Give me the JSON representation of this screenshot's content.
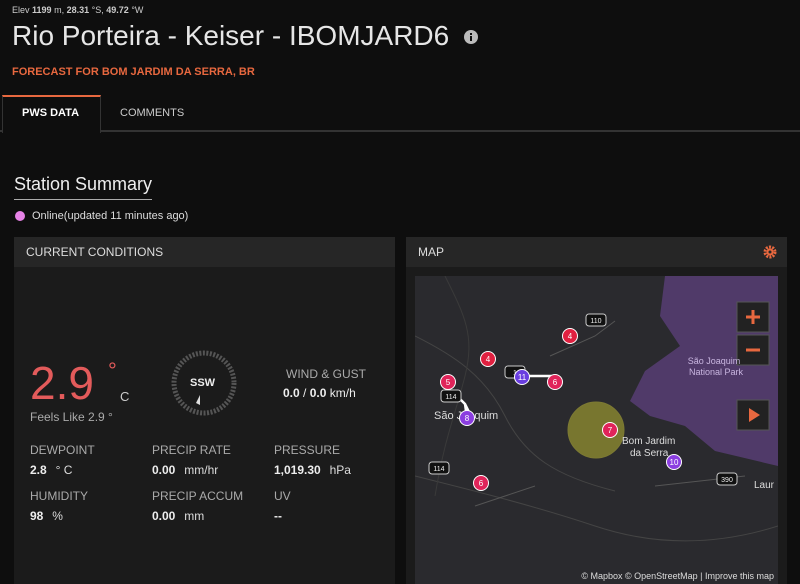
{
  "header": {
    "elev_label": "Elev",
    "elev": "1199",
    "elev_unit": "m,",
    "lat": "28.31",
    "lat_unit": "°S,",
    "lon": "49.72",
    "lon_unit": "°W",
    "title": "Rio Porteira - Keiser - IBOMJARD6",
    "forecast": "FORECAST FOR BOM JARDIM DA SERRA, BR"
  },
  "tabs": [
    "PWS DATA",
    "COMMENTS"
  ],
  "summary": {
    "title": "Station Summary",
    "status": "Online(updated 11 minutes ago)"
  },
  "current": {
    "title": "CURRENT CONDITIONS",
    "temp": "2.9",
    "temp_unit": "°",
    "temp_scale": "C",
    "feels": "Feels Like 2.9 °",
    "wind_dir": "SSW",
    "wind_label": "WIND & GUST",
    "wind": "0.0",
    "wind_sep": "/",
    "gust": "0.0",
    "wind_unit": "km/h",
    "metrics": [
      {
        "label": "DEWPOINT",
        "value": "2.8",
        "unit": "° C"
      },
      {
        "label": "PRECIP RATE",
        "value": "0.00",
        "unit": "mm/hr"
      },
      {
        "label": "PRESSURE",
        "value": "1,019.30",
        "unit": "hPa"
      },
      {
        "label": "HUMIDITY",
        "value": "98",
        "unit": "%"
      },
      {
        "label": "PRECIP ACCUM",
        "value": "0.00",
        "unit": "mm"
      },
      {
        "label": "UV",
        "value": "--",
        "unit": ""
      }
    ]
  },
  "map": {
    "title": "MAP",
    "places": [
      "São Joaquim",
      "Bom Jardim",
      "da Serra",
      "São Joaquim",
      "National Park",
      "Laur"
    ],
    "roads": [
      "110",
      "114",
      "114",
      "390",
      "1"
    ],
    "markers": [
      "4",
      "4",
      "5",
      "11",
      "6",
      "8",
      "7",
      "10",
      "6"
    ],
    "attribution": "© Mapbox © OpenStreetMap | Improve this map"
  }
}
